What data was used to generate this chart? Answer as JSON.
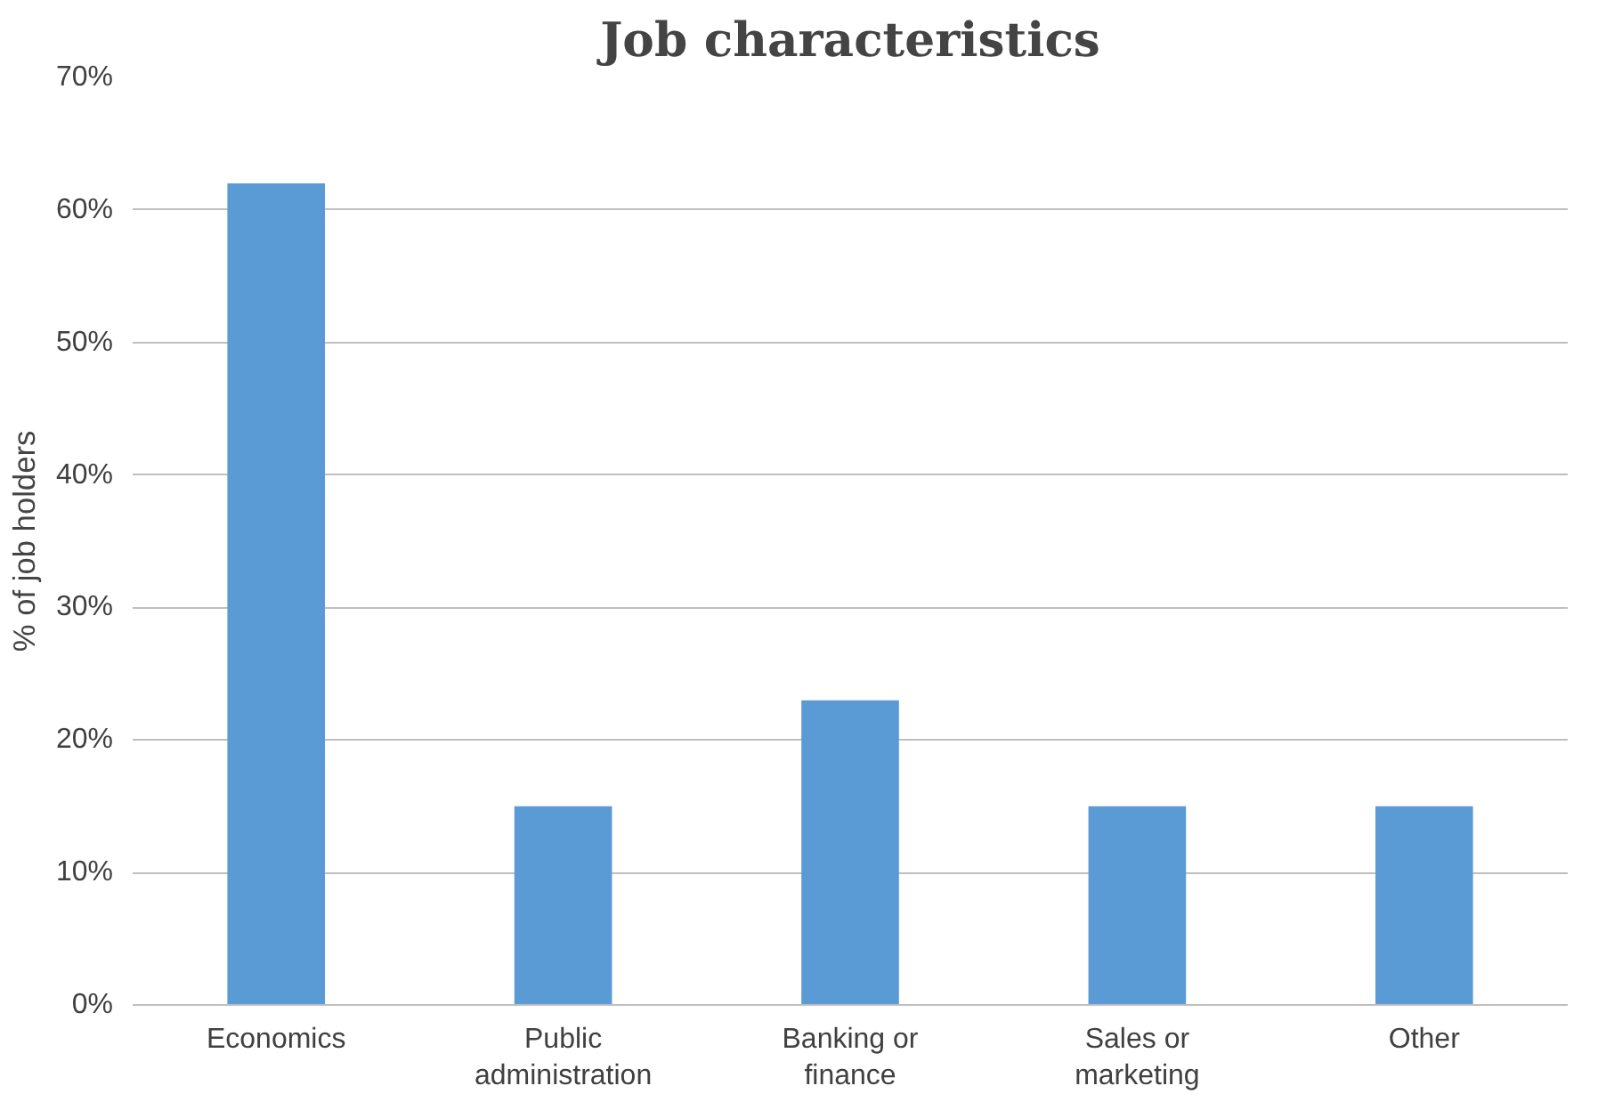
{
  "chart_data": {
    "type": "bar",
    "title": "Job characteristics",
    "ylabel": "% of job holders",
    "categories": [
      "Economics",
      "Public administration",
      "Banking or finance",
      "Sales or marketing",
      "Other"
    ],
    "values": [
      62,
      15,
      23,
      15,
      15
    ],
    "color": "#5b9bd5",
    "ylim": [
      0,
      70
    ],
    "yticks": [
      {
        "value": 0,
        "label": "0%"
      },
      {
        "value": 10,
        "label": "10%"
      },
      {
        "value": 20,
        "label": "20%"
      },
      {
        "value": 30,
        "label": "30%"
      },
      {
        "value": 40,
        "label": "40%"
      },
      {
        "value": 50,
        "label": "50%"
      },
      {
        "value": 60,
        "label": "60%"
      },
      {
        "value": 70,
        "label": "70%"
      }
    ],
    "grid": "y"
  }
}
